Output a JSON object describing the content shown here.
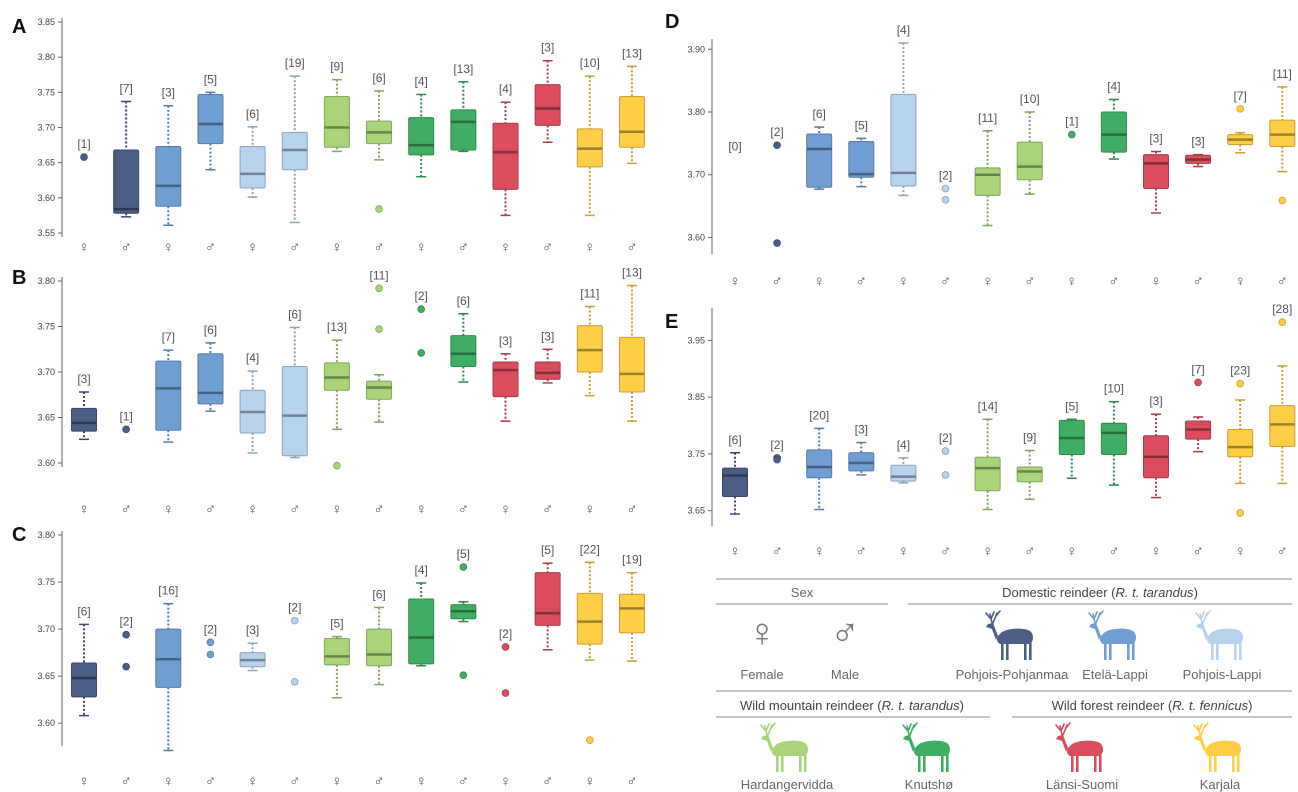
{
  "colors": {
    "Pohjois-Pohjanmaa": "#4b5e85",
    "Etelä-Lappi": "#6f9fd2",
    "Pohjois-Lappi": "#b6d2ef",
    "Hardangervidda": "#a9d47a",
    "Knutshø": "#3fae63",
    "Länsi-Suomi": "#db4c5c",
    "Karjala": "#ffce45"
  },
  "sex_symbols": {
    "female": "♀",
    "male": "♂"
  },
  "legend": {
    "sex_header": "Sex",
    "female_label": "Female",
    "male_label": "Male",
    "domestic_header_prefix": "Domestic reindeer (",
    "domestic_header_italic": "R. t. tarandus",
    "domestic_header_suffix": ")",
    "wild_mountain_prefix": "Wild mountain reindeer (",
    "wild_mountain_italic": "R. t. tarandus",
    "wild_mountain_suffix": ")",
    "wild_forest_prefix": "Wild forest reindeer (",
    "wild_forest_italic": "R. t. fennicus",
    "wild_forest_suffix": ")",
    "populations": [
      "Pohjois-Pohjanmaa",
      "Etelä-Lappi",
      "Pohjois-Lappi",
      "Hardangervidda",
      "Knutshø",
      "Länsi-Suomi",
      "Karjala"
    ],
    "icons": [
      "reindeer-icon",
      "reindeer-icon",
      "reindeer-icon",
      "reindeer-icon",
      "reindeer-icon",
      "reindeer-icon",
      "reindeer-icon"
    ]
  },
  "chart_data": [
    {
      "panel": "A",
      "type": "box",
      "ylim": [
        3.55,
        3.85
      ],
      "yticks": [
        "3.55",
        "3.60",
        "3.65",
        "3.70",
        "3.75",
        "3.80",
        "3.85"
      ],
      "groups": [
        {
          "pop": "Pohjois-Pohjanmaa",
          "sex": "female",
          "n": "[1]",
          "points": [
            3.658
          ]
        },
        {
          "pop": "Pohjois-Pohjanmaa",
          "sex": "male",
          "n": "[7]",
          "box": [
            3.573,
            3.578,
            3.584,
            3.668,
            3.737
          ]
        },
        {
          "pop": "Etelä-Lappi",
          "sex": "female",
          "n": "[3]",
          "box": [
            3.561,
            3.588,
            3.617,
            3.673,
            3.731
          ]
        },
        {
          "pop": "Etelä-Lappi",
          "sex": "male",
          "n": "[5]",
          "box": [
            3.64,
            3.677,
            3.705,
            3.747,
            3.75
          ]
        },
        {
          "pop": "Pohjois-Lappi",
          "sex": "female",
          "n": "[6]",
          "box": [
            3.601,
            3.614,
            3.634,
            3.673,
            3.701
          ]
        },
        {
          "pop": "Pohjois-Lappi",
          "sex": "male",
          "n": "[19]",
          "box": [
            3.565,
            3.64,
            3.668,
            3.693,
            3.773
          ]
        },
        {
          "pop": "Hardangervidda",
          "sex": "female",
          "n": "[9]",
          "box": [
            3.666,
            3.672,
            3.7,
            3.744,
            3.768
          ]
        },
        {
          "pop": "Hardangervidda",
          "sex": "male",
          "n": "[6]",
          "box": [
            3.654,
            3.677,
            3.693,
            3.709,
            3.752
          ],
          "points": [
            3.584
          ]
        },
        {
          "pop": "Knutshø",
          "sex": "female",
          "n": "[4]",
          "box": [
            3.63,
            3.661,
            3.675,
            3.714,
            3.747
          ]
        },
        {
          "pop": "Knutshø",
          "sex": "male",
          "n": "[13]",
          "box": [
            3.666,
            3.668,
            3.708,
            3.725,
            3.765
          ]
        },
        {
          "pop": "Länsi-Suomi",
          "sex": "female",
          "n": "[4]",
          "box": [
            3.575,
            3.612,
            3.665,
            3.706,
            3.736
          ]
        },
        {
          "pop": "Länsi-Suomi",
          "sex": "male",
          "n": "[3]",
          "box": [
            3.679,
            3.703,
            3.727,
            3.761,
            3.795
          ]
        },
        {
          "pop": "Karjala",
          "sex": "female",
          "n": "[10]",
          "box": [
            3.575,
            3.644,
            3.67,
            3.698,
            3.773
          ]
        },
        {
          "pop": "Karjala",
          "sex": "male",
          "n": "[13]",
          "box": [
            3.649,
            3.672,
            3.694,
            3.744,
            3.787
          ]
        }
      ]
    },
    {
      "panel": "B",
      "type": "box",
      "ylim": [
        3.6,
        3.8
      ],
      "yticks": [
        "3.60",
        "3.65",
        "3.70",
        "3.75",
        "3.80"
      ],
      "groups": [
        {
          "pop": "Pohjois-Pohjanmaa",
          "sex": "female",
          "n": "[3]",
          "box": [
            3.626,
            3.635,
            3.644,
            3.66,
            3.678
          ]
        },
        {
          "pop": "Pohjois-Pohjanmaa",
          "sex": "male",
          "n": "[1]",
          "points": [
            3.637
          ]
        },
        {
          "pop": "Etelä-Lappi",
          "sex": "female",
          "n": "[7]",
          "box": [
            3.623,
            3.636,
            3.682,
            3.712,
            3.724
          ]
        },
        {
          "pop": "Etelä-Lappi",
          "sex": "male",
          "n": "[6]",
          "box": [
            3.657,
            3.665,
            3.677,
            3.72,
            3.732
          ]
        },
        {
          "pop": "Pohjois-Lappi",
          "sex": "female",
          "n": "[4]",
          "box": [
            3.611,
            3.633,
            3.656,
            3.68,
            3.701
          ]
        },
        {
          "pop": "Pohjois-Lappi",
          "sex": "male",
          "n": "[6]",
          "box": [
            3.606,
            3.608,
            3.652,
            3.706,
            3.749
          ]
        },
        {
          "pop": "Hardangervidda",
          "sex": "female",
          "n": "[13]",
          "box": [
            3.637,
            3.68,
            3.694,
            3.71,
            3.735
          ],
          "points": [
            3.597
          ]
        },
        {
          "pop": "Hardangervidda",
          "sex": "male",
          "n": "[11]",
          "box": [
            3.645,
            3.67,
            3.683,
            3.69,
            3.697
          ],
          "points": [
            3.792,
            3.747
          ]
        },
        {
          "pop": "Knutshø",
          "sex": "female",
          "n": "[2]",
          "points": [
            3.769,
            3.721
          ]
        },
        {
          "pop": "Knutshø",
          "sex": "male",
          "n": "[6]",
          "box": [
            3.689,
            3.706,
            3.72,
            3.74,
            3.764
          ]
        },
        {
          "pop": "Länsi-Suomi",
          "sex": "female",
          "n": "[3]",
          "box": [
            3.646,
            3.673,
            3.702,
            3.711,
            3.72
          ]
        },
        {
          "pop": "Länsi-Suomi",
          "sex": "male",
          "n": "[3]",
          "box": [
            3.688,
            3.692,
            3.699,
            3.711,
            3.725
          ]
        },
        {
          "pop": "Karjala",
          "sex": "female",
          "n": "[11]",
          "box": [
            3.674,
            3.7,
            3.724,
            3.751,
            3.772
          ]
        },
        {
          "pop": "Karjala",
          "sex": "male",
          "n": "[13]",
          "box": [
            3.646,
            3.678,
            3.698,
            3.738,
            3.795
          ]
        }
      ]
    },
    {
      "panel": "C",
      "type": "box",
      "ylim": [
        3.58,
        3.8
      ],
      "yticks": [
        "3.60",
        "3.65",
        "3.70",
        "3.75",
        "3.80"
      ],
      "groups": [
        {
          "pop": "Pohjois-Pohjanmaa",
          "sex": "female",
          "n": "[6]",
          "box": [
            3.608,
            3.628,
            3.648,
            3.664,
            3.705
          ]
        },
        {
          "pop": "Pohjois-Pohjanmaa",
          "sex": "male",
          "n": "[2]",
          "points": [
            3.694,
            3.66
          ]
        },
        {
          "pop": "Etelä-Lappi",
          "sex": "female",
          "n": "[16]",
          "box": [
            3.571,
            3.638,
            3.668,
            3.7,
            3.727
          ]
        },
        {
          "pop": "Etelä-Lappi",
          "sex": "male",
          "n": "[2]",
          "points": [
            3.686,
            3.673
          ]
        },
        {
          "pop": "Pohjois-Lappi",
          "sex": "female",
          "n": "[3]",
          "box": [
            3.656,
            3.66,
            3.667,
            3.675,
            3.685
          ]
        },
        {
          "pop": "Pohjois-Lappi",
          "sex": "male",
          "n": "[2]",
          "points": [
            3.709,
            3.644
          ]
        },
        {
          "pop": "Hardangervidda",
          "sex": "female",
          "n": "[5]",
          "box": [
            3.627,
            3.662,
            3.671,
            3.69,
            3.692
          ]
        },
        {
          "pop": "Hardangervidda",
          "sex": "male",
          "n": "[6]",
          "box": [
            3.641,
            3.661,
            3.673,
            3.7,
            3.723
          ]
        },
        {
          "pop": "Knutshø",
          "sex": "female",
          "n": "[4]",
          "box": [
            3.661,
            3.663,
            3.691,
            3.732,
            3.749
          ]
        },
        {
          "pop": "Knutshø",
          "sex": "male",
          "n": "[5]",
          "box": [
            3.708,
            3.711,
            3.719,
            3.726,
            3.729
          ],
          "points": [
            3.766,
            3.651
          ]
        },
        {
          "pop": "Länsi-Suomi",
          "sex": "female",
          "n": "[2]",
          "points": [
            3.681,
            3.632
          ]
        },
        {
          "pop": "Länsi-Suomi",
          "sex": "male",
          "n": "[5]",
          "box": [
            3.678,
            3.704,
            3.717,
            3.76,
            3.77
          ]
        },
        {
          "pop": "Karjala",
          "sex": "female",
          "n": "[22]",
          "box": [
            3.667,
            3.684,
            3.708,
            3.738,
            3.771
          ],
          "points": [
            3.582
          ]
        },
        {
          "pop": "Karjala",
          "sex": "male",
          "n": "[19]",
          "box": [
            3.666,
            3.696,
            3.722,
            3.737,
            3.76
          ]
        }
      ]
    },
    {
      "panel": "D",
      "type": "box",
      "ylim": [
        3.58,
        3.91
      ],
      "yticks": [
        "3.60",
        "3.70",
        "3.80",
        "3.90"
      ],
      "groups": [
        {
          "pop": "Pohjois-Pohjanmaa",
          "sex": "female",
          "n": "[0]"
        },
        {
          "pop": "Pohjois-Pohjanmaa",
          "sex": "male",
          "n": "[2]",
          "points": [
            3.747,
            3.591
          ]
        },
        {
          "pop": "Etelä-Lappi",
          "sex": "female",
          "n": "[6]",
          "box": [
            3.677,
            3.68,
            3.741,
            3.765,
            3.776
          ]
        },
        {
          "pop": "Etelä-Lappi",
          "sex": "male",
          "n": "[5]",
          "box": [
            3.681,
            3.696,
            3.701,
            3.753,
            3.758
          ]
        },
        {
          "pop": "Pohjois-Lappi",
          "sex": "female",
          "n": "[4]",
          "box": [
            3.667,
            3.682,
            3.703,
            3.828,
            3.91
          ]
        },
        {
          "pop": "Pohjois-Lappi",
          "sex": "male",
          "n": "[2]",
          "points": [
            3.678,
            3.66
          ]
        },
        {
          "pop": "Hardangervidda",
          "sex": "female",
          "n": "[11]",
          "box": [
            3.619,
            3.667,
            3.7,
            3.711,
            3.77
          ]
        },
        {
          "pop": "Hardangervidda",
          "sex": "male",
          "n": "[10]",
          "box": [
            3.669,
            3.692,
            3.713,
            3.752,
            3.8
          ]
        },
        {
          "pop": "Knutshø",
          "sex": "female",
          "n": "[1]",
          "points": [
            3.764
          ]
        },
        {
          "pop": "Knutshø",
          "sex": "male",
          "n": "[4]",
          "box": [
            3.725,
            3.736,
            3.764,
            3.8,
            3.82
          ]
        },
        {
          "pop": "Länsi-Suomi",
          "sex": "female",
          "n": "[3]",
          "box": [
            3.639,
            3.678,
            3.718,
            3.732,
            3.737
          ]
        },
        {
          "pop": "Länsi-Suomi",
          "sex": "male",
          "n": "[3]",
          "box": [
            3.713,
            3.718,
            3.724,
            3.731,
            3.732
          ]
        },
        {
          "pop": "Karjala",
          "sex": "female",
          "n": "[7]",
          "box": [
            3.735,
            3.748,
            3.756,
            3.764,
            3.767
          ],
          "points": [
            3.805
          ]
        },
        {
          "pop": "Karjala",
          "sex": "male",
          "n": "[11]",
          "box": [
            3.705,
            3.745,
            3.764,
            3.787,
            3.84
          ],
          "points": [
            3.659
          ]
        }
      ]
    },
    {
      "panel": "E",
      "type": "box",
      "ylim": [
        3.63,
        4.0
      ],
      "yticks": [
        "3.65",
        "3.75",
        "3.85",
        "3.95"
      ],
      "groups": [
        {
          "pop": "Pohjois-Pohjanmaa",
          "sex": "female",
          "n": "[6]",
          "box": [
            3.644,
            3.675,
            3.712,
            3.725,
            3.752
          ]
        },
        {
          "pop": "Pohjois-Pohjanmaa",
          "sex": "male",
          "n": "[2]",
          "points": [
            3.743,
            3.74
          ]
        },
        {
          "pop": "Etelä-Lappi",
          "sex": "female",
          "n": "[20]",
          "box": [
            3.652,
            3.708,
            3.727,
            3.757,
            3.795
          ]
        },
        {
          "pop": "Etelä-Lappi",
          "sex": "male",
          "n": "[3]",
          "box": [
            3.713,
            3.72,
            3.734,
            3.752,
            3.77
          ]
        },
        {
          "pop": "Pohjois-Lappi",
          "sex": "female",
          "n": "[4]",
          "box": [
            3.699,
            3.702,
            3.71,
            3.73,
            3.743
          ]
        },
        {
          "pop": "Pohjois-Lappi",
          "sex": "male",
          "n": "[2]",
          "points": [
            3.755,
            3.713
          ]
        },
        {
          "pop": "Hardangervidda",
          "sex": "female",
          "n": "[14]",
          "box": [
            3.652,
            3.685,
            3.725,
            3.744,
            3.811
          ]
        },
        {
          "pop": "Hardangervidda",
          "sex": "male",
          "n": "[9]",
          "box": [
            3.67,
            3.701,
            3.719,
            3.727,
            3.756
          ]
        },
        {
          "pop": "Knutshø",
          "sex": "female",
          "n": "[5]",
          "box": [
            3.707,
            3.749,
            3.778,
            3.809,
            3.811
          ]
        },
        {
          "pop": "Knutshø",
          "sex": "male",
          "n": "[10]",
          "box": [
            3.695,
            3.749,
            3.787,
            3.804,
            3.842
          ]
        },
        {
          "pop": "Länsi-Suomi",
          "sex": "female",
          "n": "[3]",
          "box": [
            3.673,
            3.708,
            3.745,
            3.782,
            3.82
          ]
        },
        {
          "pop": "Länsi-Suomi",
          "sex": "male",
          "n": "[7]",
          "box": [
            3.754,
            3.776,
            3.793,
            3.808,
            3.815
          ],
          "points": [
            3.876
          ]
        },
        {
          "pop": "Karjala",
          "sex": "female",
          "n": "[23]",
          "box": [
            3.698,
            3.745,
            3.762,
            3.793,
            3.845
          ],
          "points": [
            3.874,
            3.646
          ]
        },
        {
          "pop": "Karjala",
          "sex": "male",
          "n": "[28]",
          "box": [
            3.698,
            3.763,
            3.802,
            3.835,
            3.905
          ],
          "points": [
            3.982
          ]
        }
      ]
    }
  ]
}
